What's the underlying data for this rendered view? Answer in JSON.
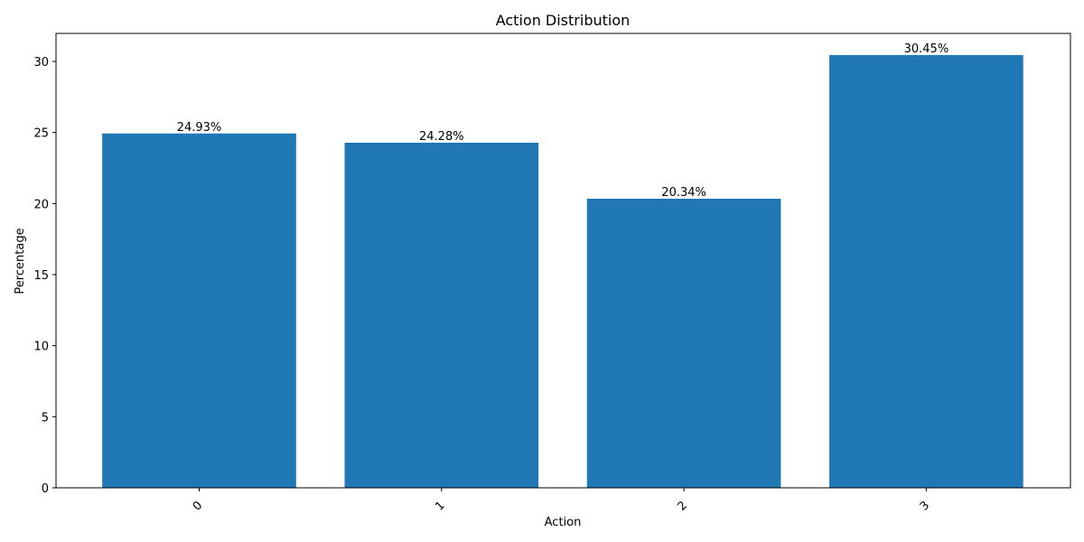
{
  "chart_data": {
    "type": "bar",
    "title": "Action Distribution",
    "xlabel": "Action",
    "ylabel": "Percentage",
    "categories": [
      "0",
      "1",
      "2",
      "3"
    ],
    "values": [
      24.93,
      24.28,
      20.34,
      30.45
    ],
    "data_labels": [
      "24.93%",
      "24.28%",
      "20.34%",
      "30.45%"
    ],
    "ylim": [
      0,
      31.97
    ],
    "yticks": [
      0,
      5,
      10,
      15,
      20,
      25,
      30
    ],
    "x_tick_rotation_deg": 45,
    "grid": false,
    "bar_color": "#1f77b4"
  }
}
